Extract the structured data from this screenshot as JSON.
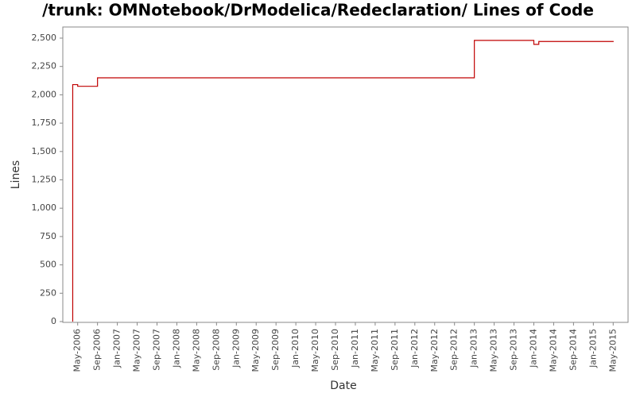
{
  "chart_data": {
    "type": "step",
    "title": "/trunk: OMNotebook/DrModelica/Redeclaration/ Lines of Code",
    "x_label": "Date",
    "y_label": "Lines",
    "x": [
      "2006-04",
      "2006-04",
      "2006-05",
      "2006-09",
      "2013-01",
      "2014-01",
      "2014-02",
      "2015-05"
    ],
    "series": [
      {
        "name": "Lines",
        "color": "#c00000",
        "values": [
          0,
          2090,
          2075,
          2150,
          2480,
          2445,
          2470,
          2475
        ]
      }
    ],
    "xlim": [
      "2006-02",
      "2015-08"
    ],
    "xticks": [
      {
        "value": "2006-05",
        "label": "May-2006"
      },
      {
        "value": "2006-09",
        "label": "Sep-2006"
      },
      {
        "value": "2007-01",
        "label": "Jan-2007"
      },
      {
        "value": "2007-05",
        "label": "May-2007"
      },
      {
        "value": "2007-09",
        "label": "Sep-2007"
      },
      {
        "value": "2008-01",
        "label": "Jan-2008"
      },
      {
        "value": "2008-05",
        "label": "May-2008"
      },
      {
        "value": "2008-09",
        "label": "Sep-2008"
      },
      {
        "value": "2009-01",
        "label": "Jan-2009"
      },
      {
        "value": "2009-05",
        "label": "May-2009"
      },
      {
        "value": "2009-09",
        "label": "Sep-2009"
      },
      {
        "value": "2010-01",
        "label": "Jan-2010"
      },
      {
        "value": "2010-05",
        "label": "May-2010"
      },
      {
        "value": "2010-09",
        "label": "Sep-2010"
      },
      {
        "value": "2011-01",
        "label": "Jan-2011"
      },
      {
        "value": "2011-05",
        "label": "May-2011"
      },
      {
        "value": "2011-09",
        "label": "Sep-2011"
      },
      {
        "value": "2012-01",
        "label": "Jan-2012"
      },
      {
        "value": "2012-05",
        "label": "May-2012"
      },
      {
        "value": "2012-09",
        "label": "Sep-2012"
      },
      {
        "value": "2013-01",
        "label": "Jan-2013"
      },
      {
        "value": "2013-05",
        "label": "May-2013"
      },
      {
        "value": "2013-09",
        "label": "Sep-2013"
      },
      {
        "value": "2014-01",
        "label": "Jan-2014"
      },
      {
        "value": "2014-05",
        "label": "May-2014"
      },
      {
        "value": "2014-09",
        "label": "Sep-2014"
      },
      {
        "value": "2015-01",
        "label": "Jan-2015"
      },
      {
        "value": "2015-05",
        "label": "May-2015"
      }
    ],
    "ylim": [
      0,
      2500
    ],
    "yticks": [
      0,
      250,
      500,
      750,
      {
        "value": 1000,
        "label": "1,000"
      },
      {
        "value": 1250,
        "label": "1,250"
      },
      {
        "value": 1500,
        "label": "1,500"
      },
      {
        "value": 1750,
        "label": "1,750"
      },
      {
        "value": 2000,
        "label": "2,000"
      },
      {
        "value": 2250,
        "label": "2,250"
      },
      {
        "value": 2500,
        "label": "2,500"
      }
    ],
    "grid": false
  }
}
